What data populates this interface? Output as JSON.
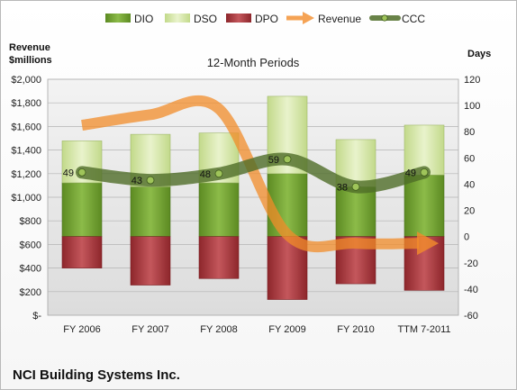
{
  "chart_data": {
    "type": "bar",
    "title": "12-Month Periods",
    "left_axis_title_lines": [
      "Revenue",
      "$millions"
    ],
    "right_axis_title": "Days",
    "categories": [
      "FY 2006",
      "FY 2007",
      "FY 2008",
      "FY 2009",
      "FY 2010",
      "TTM 7-2011"
    ],
    "left_axis": {
      "min": 0,
      "max": 2000,
      "step": 200,
      "tick_labels": [
        "$-",
        "$200",
        "$400",
        "$600",
        "$800",
        "$1,000",
        "$1,200",
        "$1,400",
        "$1,600",
        "$1,800",
        "$2,000"
      ]
    },
    "right_axis": {
      "min": -60,
      "max": 120,
      "step": 20,
      "tick_labels": [
        "-60",
        "-40",
        "-20",
        "0",
        "20",
        "40",
        "60",
        "80",
        "100",
        "120"
      ]
    },
    "grid": true,
    "legend_position": "top",
    "series": [
      {
        "name": "DIO",
        "axis": "right",
        "kind": "stacked-bar",
        "color": "#6e9a2e",
        "values": [
          41,
          38,
          41,
          48,
          38,
          47
        ]
      },
      {
        "name": "DSO",
        "axis": "right",
        "kind": "stacked-bar",
        "color": "#d4e6a6",
        "values": [
          32,
          40,
          38,
          59,
          36,
          38
        ]
      },
      {
        "name": "DPO",
        "axis": "right",
        "kind": "negative-bar",
        "color": "#a8353a",
        "values": [
          -24,
          -37,
          -32,
          -48,
          -36,
          -41
        ]
      },
      {
        "name": "Revenue",
        "axis": "left",
        "kind": "arrow-line",
        "color": "#f28c2a",
        "values": [
          1610,
          1700,
          1750,
          685,
          610,
          610
        ]
      },
      {
        "name": "CCC",
        "axis": "right",
        "kind": "line",
        "color": "#4f6d28",
        "values": [
          49,
          43,
          48,
          59,
          38,
          49
        ]
      }
    ],
    "data_labels": [
      "49",
      "43",
      "48",
      "59",
      "38",
      "49"
    ]
  },
  "footer": {
    "company": "NCI Building Systems Inc."
  }
}
